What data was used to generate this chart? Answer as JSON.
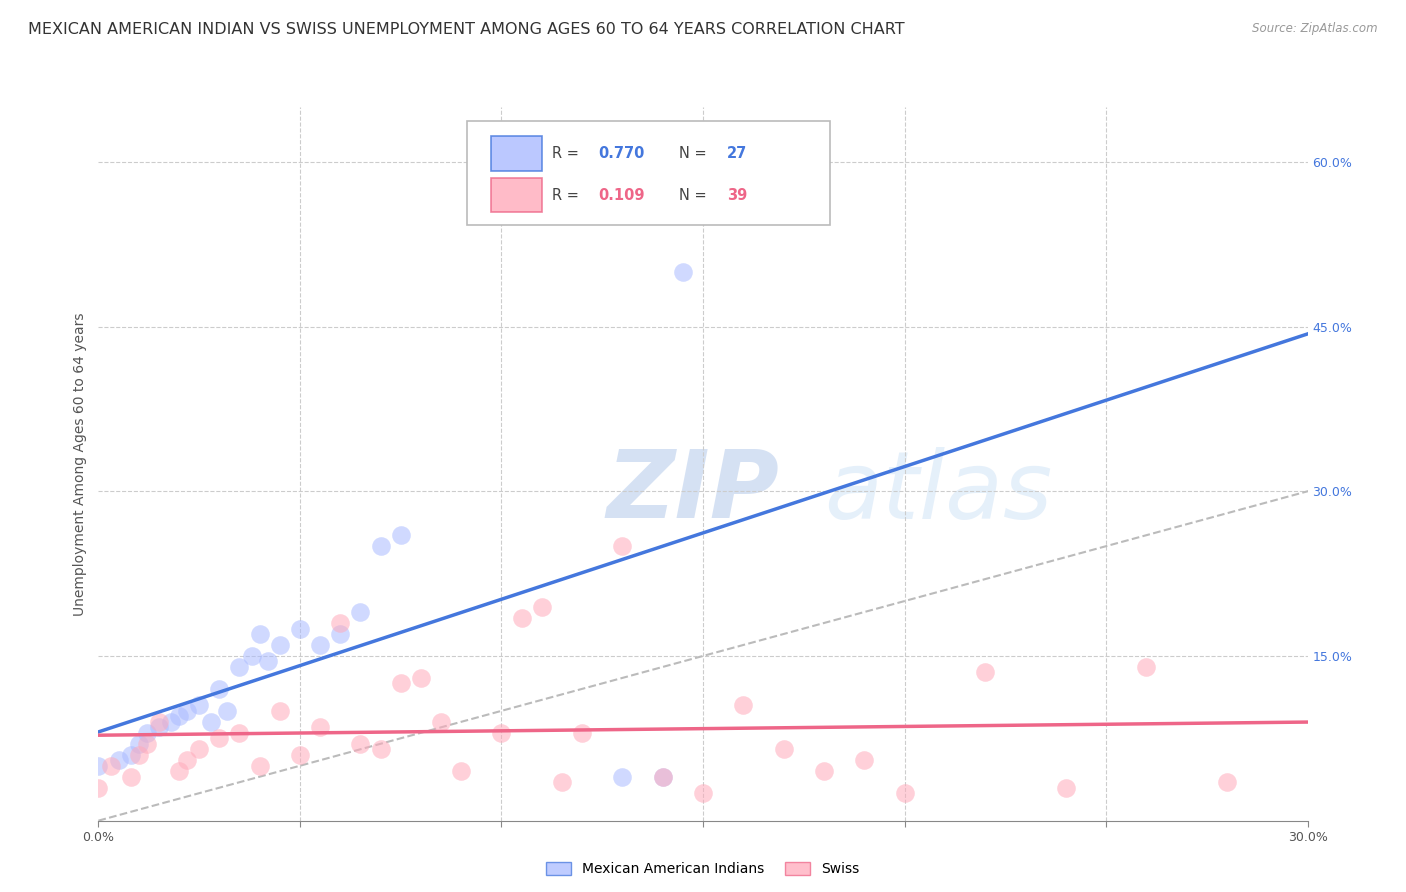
{
  "title": "MEXICAN AMERICAN INDIAN VS SWISS UNEMPLOYMENT AMONG AGES 60 TO 64 YEARS CORRELATION CHART",
  "source": "Source: ZipAtlas.com",
  "ylabel": "Unemployment Among Ages 60 to 64 years",
  "xlim": [
    0.0,
    30.0
  ],
  "ylim": [
    0.0,
    65.0
  ],
  "xticks": [
    0.0,
    5.0,
    10.0,
    15.0,
    20.0,
    25.0,
    30.0
  ],
  "xtick_labels": [
    "0.0%",
    "",
    "",
    "",
    "",
    "",
    "30.0%"
  ],
  "yticks_right": [
    0.0,
    15.0,
    30.0,
    45.0,
    60.0
  ],
  "ytick_right_labels": [
    "",
    "15.0%",
    "30.0%",
    "45.0%",
    "60.0%"
  ],
  "legend_label1": "Mexican American Indians",
  "legend_label2": "Swiss",
  "blue_color": "#aabbff",
  "pink_color": "#ffaabb",
  "blue_line_color": "#4477dd",
  "pink_line_color": "#ee6688",
  "blue_r": "0.770",
  "blue_n": "27",
  "pink_r": "0.109",
  "pink_n": "39",
  "watermark_zip": "ZIP",
  "watermark_atlas": "atlas",
  "grid_color": "#cccccc",
  "background_color": "#ffffff",
  "title_fontsize": 11.5,
  "axis_label_fontsize": 10,
  "tick_fontsize": 9,
  "blue_x": [
    0.0,
    0.5,
    0.8,
    1.0,
    1.2,
    1.5,
    1.8,
    2.0,
    2.2,
    2.5,
    2.8,
    3.0,
    3.2,
    3.5,
    3.8,
    4.0,
    4.2,
    4.5,
    5.0,
    5.5,
    6.0,
    6.5,
    7.0,
    7.5,
    13.0,
    14.0,
    14.5
  ],
  "blue_y": [
    5.0,
    5.5,
    6.0,
    7.0,
    8.0,
    8.5,
    9.0,
    9.5,
    10.0,
    10.5,
    9.0,
    12.0,
    10.0,
    14.0,
    15.0,
    17.0,
    14.5,
    16.0,
    17.5,
    16.0,
    17.0,
    19.0,
    25.0,
    26.0,
    4.0,
    4.0,
    50.0
  ],
  "pink_x": [
    0.0,
    0.3,
    0.8,
    1.0,
    1.2,
    1.5,
    2.0,
    2.2,
    2.5,
    3.0,
    3.5,
    4.0,
    4.5,
    5.0,
    5.5,
    6.0,
    6.5,
    7.0,
    7.5,
    8.0,
    8.5,
    9.0,
    10.0,
    10.5,
    11.0,
    11.5,
    12.0,
    13.0,
    14.0,
    15.0,
    16.0,
    17.0,
    18.0,
    19.0,
    20.0,
    22.0,
    24.0,
    26.0,
    28.0
  ],
  "pink_y": [
    3.0,
    5.0,
    4.0,
    6.0,
    7.0,
    9.0,
    4.5,
    5.5,
    6.5,
    7.5,
    8.0,
    5.0,
    10.0,
    6.0,
    8.5,
    18.0,
    7.0,
    6.5,
    12.5,
    13.0,
    9.0,
    4.5,
    8.0,
    18.5,
    19.5,
    3.5,
    8.0,
    25.0,
    4.0,
    2.5,
    10.5,
    6.5,
    4.5,
    5.5,
    2.5,
    13.5,
    3.0,
    14.0,
    3.5
  ]
}
